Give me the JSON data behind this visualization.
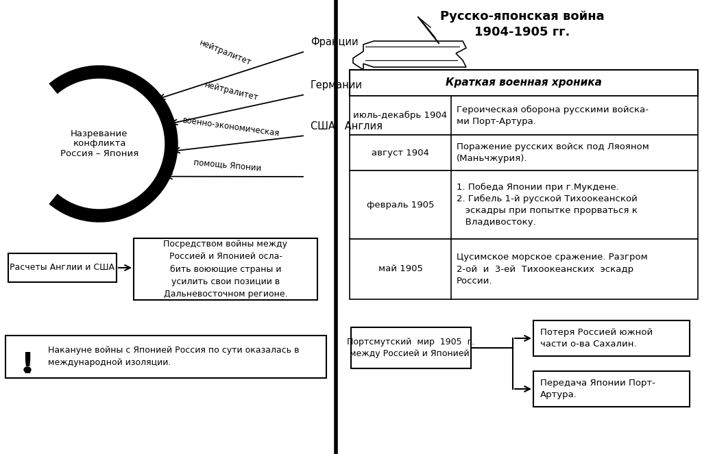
{
  "bg_color": "#ffffff",
  "title_right": "Русско-японская война\n1904-1905 гг.",
  "table_header": "Краткая военная хроника",
  "table_rows": [
    [
      "июль-декабрь 1904",
      "Героическая оборона русскими войска-\nми Порт-Артура."
    ],
    [
      "август 1904",
      "Поражение русских войск под Ляояном\n(Маньчжурия)."
    ],
    [
      "февраль 1905",
      "1. Победа Японии при г.Мукдене.\n2. Гибель 1-й русской Тихоокеанской\n   эскадры при попытке прорваться к\n   Владивостоку."
    ],
    [
      "май 1905",
      "Цусимское морское сражение. Разгром\n2-ой  и  3-ей  Тихоокеанских  эскадр\nРоссии."
    ]
  ],
  "circle_text": "Назревание\nконфликта\nРоссия – Япония",
  "arrow_labels": [
    "нейтралитет",
    "нейтралитет",
    "военно-экономическая",
    "помощь Японии"
  ],
  "arrow_targets": [
    "Франции",
    "Германии",
    "США,  Англия",
    ""
  ],
  "box1_text": "Расчеты Англии и США",
  "box2_text": "Посредством войны между\nРоссией и Японией осла-\nбить воюющие страны и\nусилить свои позиции в\nДальневосточном регионе.",
  "excl_text": "Накануне войны с Японией Россия по сути оказалась в\nмеждународной изоляции.",
  "peace_box": "Портсмутский  мир  1905  г.\nмежду Россией и Японией.",
  "result1": "Потеря Россией южной\nчасти о-ва Сахалин.",
  "result2": "Передача Японии Порт-\nАртура."
}
